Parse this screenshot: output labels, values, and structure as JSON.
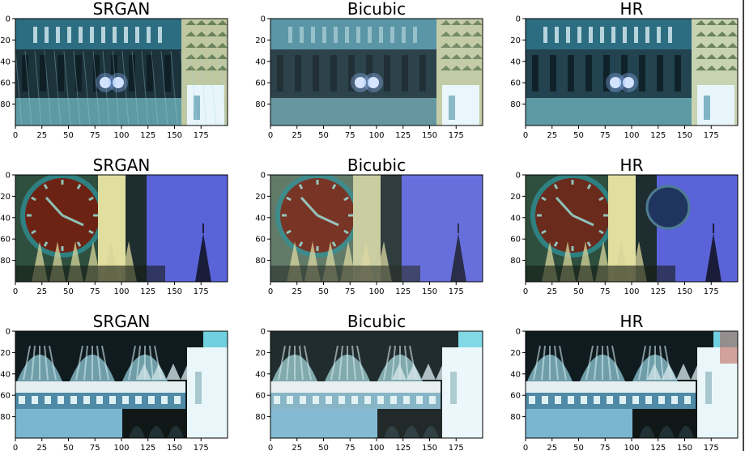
{
  "figure": {
    "panels": [
      {
        "title": "SRGAN",
        "scene": "kremlin-wall-srgan",
        "x_ticks": [
          "0",
          "25",
          "50",
          "75",
          "100",
          "125",
          "150",
          "175"
        ],
        "y_ticks": [
          "0",
          "20",
          "40",
          "60",
          "80"
        ]
      },
      {
        "title": "Bicubic",
        "scene": "kremlin-wall-bicubic",
        "x_ticks": [
          "0",
          "25",
          "50",
          "75",
          "100",
          "125",
          "150",
          "175"
        ],
        "y_ticks": [
          "0",
          "20",
          "40",
          "60",
          "80"
        ]
      },
      {
        "title": "HR",
        "scene": "kremlin-wall-hr",
        "x_ticks": [
          "0",
          "25",
          "50",
          "75",
          "100",
          "125",
          "150",
          "175"
        ],
        "y_ticks": [
          "0",
          "20",
          "40",
          "60",
          "80"
        ]
      },
      {
        "title": "SRGAN",
        "scene": "clock-tower-srgan",
        "x_ticks": [
          "0",
          "25",
          "50",
          "75",
          "100",
          "125",
          "150",
          "175"
        ],
        "y_ticks": [
          "0",
          "20",
          "40",
          "60",
          "80"
        ]
      },
      {
        "title": "Bicubic",
        "scene": "clock-tower-bicubic",
        "x_ticks": [
          "0",
          "25",
          "50",
          "75",
          "100",
          "125",
          "150",
          "175"
        ],
        "y_ticks": [
          "0",
          "20",
          "40",
          "60",
          "80"
        ]
      },
      {
        "title": "HR",
        "scene": "clock-tower-hr",
        "x_ticks": [
          "0",
          "25",
          "50",
          "75",
          "100",
          "125",
          "150",
          "175"
        ],
        "y_ticks": [
          "0",
          "20",
          "40",
          "60",
          "80"
        ]
      },
      {
        "title": "SRGAN",
        "scene": "domes-srgan",
        "x_ticks": [
          "0",
          "25",
          "50",
          "75",
          "100",
          "125",
          "150",
          "175"
        ],
        "y_ticks": [
          "0",
          "20",
          "40",
          "60",
          "80"
        ]
      },
      {
        "title": "Bicubic",
        "scene": "domes-bicubic",
        "x_ticks": [
          "0",
          "25",
          "50",
          "75",
          "100",
          "125",
          "150",
          "175"
        ],
        "y_ticks": [
          "0",
          "20",
          "40",
          "60",
          "80"
        ]
      },
      {
        "title": "HR",
        "scene": "domes-hr",
        "x_ticks": [
          "0",
          "25",
          "50",
          "75",
          "100",
          "125",
          "150",
          "175"
        ],
        "y_ticks": [
          "0",
          "20",
          "40",
          "60",
          "80"
        ]
      }
    ]
  }
}
